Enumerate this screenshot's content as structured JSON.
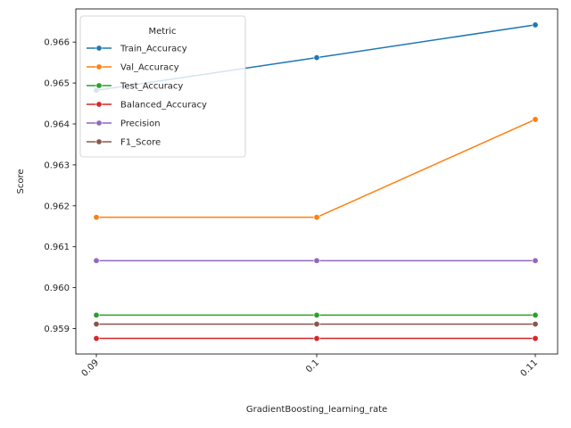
{
  "chart_data": {
    "type": "line",
    "xlabel": "GradientBoosting_learning_rate",
    "ylabel": "Score",
    "x": [
      "0.09",
      "0.1",
      "0.11"
    ],
    "ylim": [
      0.95838,
      0.96681
    ],
    "yticks": [
      "0.959",
      "0.960",
      "0.961",
      "0.962",
      "0.963",
      "0.964",
      "0.965",
      "0.966"
    ],
    "legend_title": "Metric",
    "legend_position": "top-left",
    "grid": false,
    "series": [
      {
        "name": "Train_Accuracy",
        "color": "#1f77b4",
        "values": [
          0.96482,
          0.96562,
          0.96642
        ]
      },
      {
        "name": "Val_Accuracy",
        "color": "#ff7f0e",
        "values": [
          0.96172,
          0.96172,
          0.96411
        ]
      },
      {
        "name": "Test_Accuracy",
        "color": "#2ca02c",
        "values": [
          0.95933,
          0.95933,
          0.95933
        ]
      },
      {
        "name": "Balanced_Accuracy",
        "color": "#d62728",
        "values": [
          0.95876,
          0.95876,
          0.95876
        ]
      },
      {
        "name": "Precision",
        "color": "#9467bd",
        "values": [
          0.96066,
          0.96066,
          0.96066
        ]
      },
      {
        "name": "F1_Score",
        "color": "#8c564b",
        "values": [
          0.95911,
          0.95911,
          0.95911
        ]
      }
    ]
  }
}
